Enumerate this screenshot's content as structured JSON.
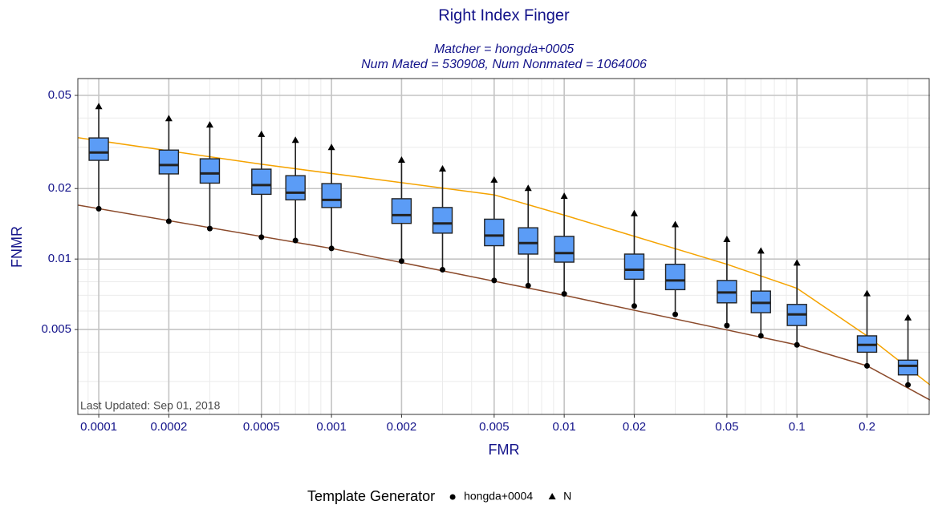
{
  "chart_data": {
    "type": "box",
    "title": "Right Index Finger",
    "subtitle": [
      "Matcher = hongda+0005",
      "Num Mated = 530908, Num Nonmated = 1064006"
    ],
    "annotation": "Last Updated: Sep 01, 2018",
    "xlabel": "FMR",
    "ylabel": "FNMR",
    "xlog": true,
    "ylog": true,
    "grid": true,
    "xlim": [
      8.13e-05,
      0.373
    ],
    "ylim": [
      0.00217,
      0.059
    ],
    "xticks": [
      0.0001,
      0.0002,
      0.0005,
      0.001,
      0.002,
      0.005,
      0.01,
      0.02,
      0.05,
      0.1,
      0.2
    ],
    "yticks": [
      0.005,
      0.01,
      0.02,
      0.05
    ],
    "xminor": [
      9e-05,
      0.0003,
      0.0004,
      0.0006,
      0.0007,
      0.0008,
      0.0009,
      0.003,
      0.004,
      0.006,
      0.007,
      0.008,
      0.009,
      0.03,
      0.04,
      0.06,
      0.07,
      0.08,
      0.09,
      0.3
    ],
    "yminor": [
      0.003,
      0.004,
      0.006,
      0.007,
      0.008,
      0.009,
      0.03,
      0.04
    ],
    "positions": [
      0.0001,
      0.0002,
      0.0003,
      0.0005,
      0.0007,
      0.001,
      0.002,
      0.003,
      0.005,
      0.007,
      0.01,
      0.02,
      0.03,
      0.05,
      0.07,
      0.1,
      0.2,
      0.3
    ],
    "box_color": "#5b9cf6",
    "boxes": [
      {
        "q1": 0.0264,
        "median": 0.0285,
        "q3": 0.0329
      },
      {
        "q1": 0.0231,
        "median": 0.0252,
        "q3": 0.0292
      },
      {
        "q1": 0.0211,
        "median": 0.0232,
        "q3": 0.0268
      },
      {
        "q1": 0.0189,
        "median": 0.0207,
        "q3": 0.0242
      },
      {
        "q1": 0.0179,
        "median": 0.0192,
        "q3": 0.0227
      },
      {
        "q1": 0.0166,
        "median": 0.0179,
        "q3": 0.021
      },
      {
        "q1": 0.0142,
        "median": 0.0154,
        "q3": 0.0181
      },
      {
        "q1": 0.0129,
        "median": 0.0142,
        "q3": 0.0166
      },
      {
        "q1": 0.0114,
        "median": 0.0126,
        "q3": 0.0148
      },
      {
        "q1": 0.0105,
        "median": 0.0117,
        "q3": 0.0136
      },
      {
        "q1": 0.0097,
        "median": 0.0106,
        "q3": 0.0125
      },
      {
        "q1": 0.0082,
        "median": 0.009,
        "q3": 0.0105
      },
      {
        "q1": 0.0074,
        "median": 0.0081,
        "q3": 0.0095
      },
      {
        "q1": 0.0065,
        "median": 0.0072,
        "q3": 0.0081
      },
      {
        "q1": 0.0059,
        "median": 0.0065,
        "q3": 0.0073
      },
      {
        "q1": 0.0052,
        "median": 0.0058,
        "q3": 0.0064
      },
      {
        "q1": 0.004,
        "median": 0.0043,
        "q3": 0.0047
      },
      {
        "q1": 0.0032,
        "median": 0.0035,
        "q3": 0.0037
      }
    ],
    "series": [
      {
        "name": "hongda+0004",
        "marker": "circle",
        "color": "#000000",
        "values": [
          0.0164,
          0.0145,
          0.0135,
          0.0124,
          0.012,
          0.0111,
          0.0098,
          0.009,
          0.0081,
          0.0077,
          0.0071,
          0.0063,
          0.0058,
          0.0052,
          0.0047,
          0.0043,
          0.0035,
          0.0029
        ]
      },
      {
        "name": "N",
        "marker": "triangle",
        "color": "#000000",
        "values": [
          0.0447,
          0.0397,
          0.0373,
          0.034,
          0.0321,
          0.0299,
          0.0264,
          0.0242,
          0.0217,
          0.02,
          0.0185,
          0.0156,
          0.014,
          0.0121,
          0.0108,
          0.0096,
          0.0071,
          0.0056
        ]
      }
    ],
    "lines": [
      {
        "color": "#f5a300",
        "x": [
          8.13e-05,
          0.0005,
          0.005,
          0.01,
          0.05,
          0.1,
          0.2,
          0.373
        ],
        "values": [
          0.033,
          0.0254,
          0.0188,
          0.0154,
          0.0095,
          0.0075,
          0.0047,
          0.0029
        ]
      },
      {
        "color": "#8b4a2b",
        "x": [
          8.13e-05,
          0.001,
          0.01,
          0.1,
          0.2,
          0.373
        ],
        "values": [
          0.017,
          0.0111,
          0.007,
          0.0043,
          0.0035,
          0.0025
        ]
      }
    ],
    "legend": {
      "title": "Template Generator",
      "position": "bottom"
    }
  }
}
